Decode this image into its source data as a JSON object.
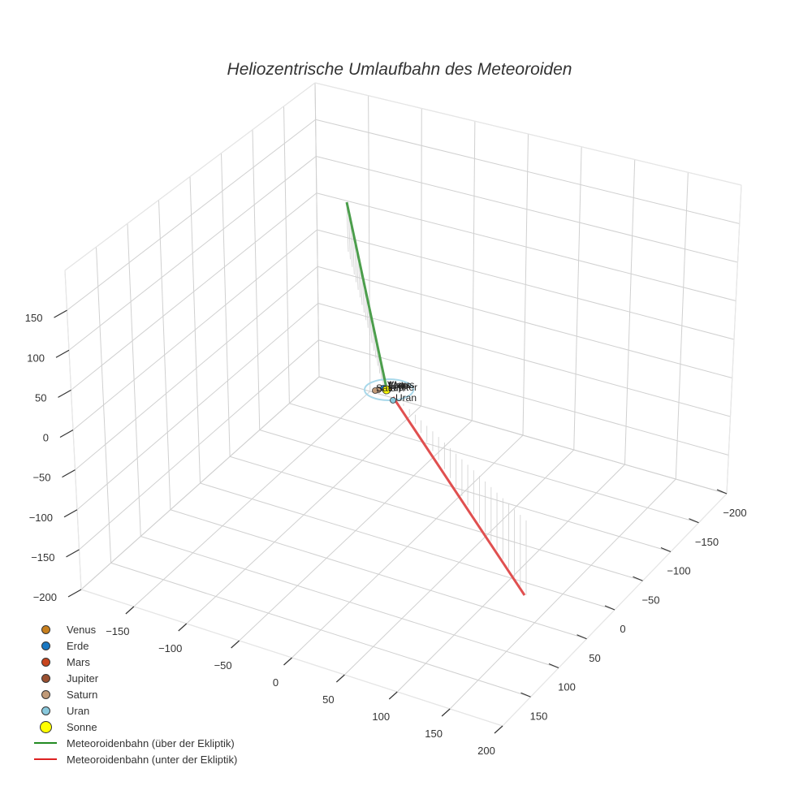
{
  "title": "Heliozentrische Umlaufbahn des Meteoroiden",
  "colors": {
    "grid": "#d0d0d0",
    "edge": "#e6e6e6",
    "tick": "#333333",
    "above": "#4c9e4c",
    "below": "#e05050",
    "orbit": "#a8d8ea"
  },
  "legend": [
    {
      "label": "Venus",
      "type": "dot",
      "color": "#c8801e",
      "size": 9
    },
    {
      "label": "Erde",
      "type": "dot",
      "color": "#1a78c2",
      "size": 9
    },
    {
      "label": "Mars",
      "type": "dot",
      "color": "#c8451e",
      "size": 9
    },
    {
      "label": "Jupiter",
      "type": "dot",
      "color": "#9a5030",
      "size": 9
    },
    {
      "label": "Saturn",
      "type": "dot",
      "color": "#c09a78",
      "size": 9
    },
    {
      "label": "Uran",
      "type": "dot",
      "color": "#88c8dc",
      "size": 9
    },
    {
      "label": "Sonne",
      "type": "dot",
      "color": "#ffff00",
      "size": 13
    },
    {
      "label": "Meteoroidenbahn (über der Ekliptik)",
      "type": "line",
      "color": "#228b22"
    },
    {
      "label": "Meteoroidenbahn (unter der Ekliptik)",
      "type": "line",
      "color": "#dd2222"
    }
  ],
  "axes": {
    "x_ticks": [
      "−150",
      "−100",
      "−50",
      "0",
      "50",
      "100",
      "150",
      "200"
    ],
    "y_ticks": [
      "−200",
      "−150",
      "−100",
      "−50",
      "0",
      "50",
      "100",
      "150"
    ],
    "z_ticks": [
      "−200",
      "−150",
      "−100",
      "−50",
      "0",
      "50",
      "100",
      "150"
    ]
  },
  "planet_labels": [
    "Venus",
    "Erde",
    "Mars",
    "Jupiter",
    "Saturn",
    "Uran"
  ],
  "chart_data": {
    "type": "scatter3d",
    "title": "Heliozentrische Umlaufbahn des Meteoroiden",
    "xlabel": "",
    "ylabel": "",
    "zlabel": "",
    "xlim": [
      -200,
      200
    ],
    "ylim": [
      -200,
      200
    ],
    "zlim": [
      -200,
      200
    ],
    "x_ticks": [
      -150,
      -100,
      -50,
      0,
      50,
      100,
      150,
      200
    ],
    "y_ticks": [
      -200,
      -150,
      -100,
      -50,
      0,
      50,
      100,
      150
    ],
    "z_ticks": [
      -200,
      -150,
      -100,
      -50,
      0,
      50,
      100,
      150
    ],
    "legend_position": "bottom-left",
    "series": [
      {
        "name": "Venus",
        "mode": "marker",
        "x": [
          0.7
        ],
        "y": [
          0.1
        ],
        "z": [
          0
        ]
      },
      {
        "name": "Erde",
        "mode": "marker",
        "x": [
          1
        ],
        "y": [
          0
        ],
        "z": [
          0
        ]
      },
      {
        "name": "Mars",
        "mode": "marker",
        "x": [
          1.5
        ],
        "y": [
          0.2
        ],
        "z": [
          0
        ]
      },
      {
        "name": "Jupiter",
        "mode": "marker",
        "x": [
          -5
        ],
        "y": [
          1
        ],
        "z": [
          0
        ]
      },
      {
        "name": "Saturn",
        "mode": "marker",
        "x": [
          -9.5
        ],
        "y": [
          1
        ],
        "z": [
          0
        ]
      },
      {
        "name": "Uran",
        "mode": "marker",
        "x": [
          15
        ],
        "y": [
          12
        ],
        "z": [
          0
        ]
      },
      {
        "name": "Sonne",
        "mode": "marker",
        "x": [
          0
        ],
        "y": [
          0
        ],
        "z": [
          0
        ]
      },
      {
        "name": "Meteoroidenbahn (über der Ekliptik)",
        "mode": "line",
        "x": [
          0,
          -10
        ],
        "y": [
          0,
          -95
        ],
        "z": [
          0,
          185
        ]
      },
      {
        "name": "Meteoroidenbahn (unter der Ekliptik)",
        "mode": "line",
        "x": [
          0,
          110
        ],
        "y": [
          0,
          60
        ],
        "z": [
          0,
          -150
        ]
      }
    ],
    "grid": true
  }
}
